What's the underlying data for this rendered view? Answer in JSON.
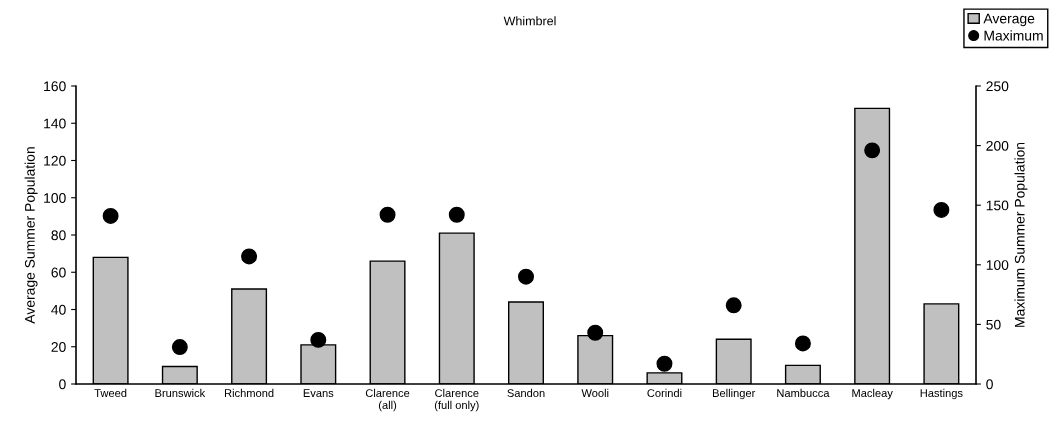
{
  "chart_data": {
    "type": "bar",
    "title": "Whimbrel",
    "categories": [
      "Tweed",
      "Brunswick",
      "Richmond",
      "Evans",
      "Clarence\n(all)",
      "Clarence\n(full only)",
      "Sandon",
      "Wooli",
      "Corindi",
      "Bellinger",
      "Nambucca",
      "Macleay",
      "Hastings"
    ],
    "series": [
      {
        "name": "Average",
        "color": "#c0c0c0",
        "values": [
          68,
          9.4,
          51,
          21,
          66,
          81,
          44,
          26,
          6,
          24,
          10,
          148,
          43
        ]
      },
      {
        "name": "Maximum",
        "type": "scatter",
        "axis": "y2",
        "color": "#000000",
        "values": [
          141,
          31,
          107,
          37,
          142,
          142,
          90,
          43,
          17,
          66,
          34,
          196,
          146
        ]
      }
    ],
    "ylabel": "Average Summer Population",
    "y2label": "Maximum Summer Population",
    "ylim": [
      0,
      160
    ],
    "yticks": [
      0,
      20,
      40,
      60,
      80,
      100,
      120,
      140,
      160
    ],
    "y2lim": [
      0,
      250
    ],
    "y2ticks": [
      0,
      50,
      100,
      150,
      200,
      250
    ],
    "marker": "circle",
    "grid": false,
    "legend": "top right"
  }
}
